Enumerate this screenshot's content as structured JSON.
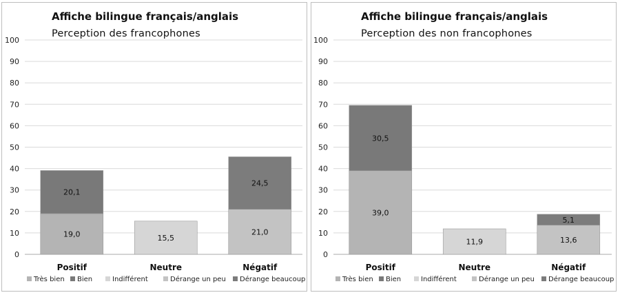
{
  "chart_data": [
    {
      "type": "bar",
      "stacked": true,
      "title": "Affiche bilingue français/anglais",
      "subtitle": "Perception des francophones",
      "categories": [
        "Positif",
        "Neutre",
        "Négatif"
      ],
      "ylim": [
        0,
        100
      ],
      "yticks": [
        0,
        10,
        20,
        30,
        40,
        50,
        60,
        70,
        80,
        90,
        100
      ],
      "grid": true,
      "legend_position": "bottom",
      "series": [
        {
          "name": "Très bien",
          "values": [
            19.0,
            null,
            null
          ],
          "labels": [
            "19,0",
            "",
            ""
          ],
          "color": "#b4b4b4"
        },
        {
          "name": "Bien",
          "values": [
            20.1,
            null,
            null
          ],
          "labels": [
            "20,1",
            "",
            ""
          ],
          "color": "#797979"
        },
        {
          "name": "Indifférent",
          "values": [
            null,
            15.5,
            null
          ],
          "labels": [
            "",
            "15,5",
            ""
          ],
          "color": "#d6d6d6"
        },
        {
          "name": "Dérange un peu",
          "values": [
            null,
            null,
            21.0
          ],
          "labels": [
            "",
            "",
            "21,0"
          ],
          "color": "#c3c3c3"
        },
        {
          "name": "Dérange beaucoup",
          "values": [
            null,
            null,
            24.5
          ],
          "labels": [
            "",
            "",
            "24,5"
          ],
          "color": "#7c7c7c"
        }
      ]
    },
    {
      "type": "bar",
      "stacked": true,
      "title": "Affiche bilingue français/anglais",
      "subtitle": "Perception des non francophones",
      "categories": [
        "Positif",
        "Neutre",
        "Négatif"
      ],
      "ylim": [
        0,
        100
      ],
      "yticks": [
        0,
        10,
        20,
        30,
        40,
        50,
        60,
        70,
        80,
        90,
        100
      ],
      "grid": true,
      "legend_position": "bottom",
      "series": [
        {
          "name": "Très bien",
          "values": [
            39.0,
            null,
            null
          ],
          "labels": [
            "39,0",
            "",
            ""
          ],
          "color": "#b4b4b4"
        },
        {
          "name": "Bien",
          "values": [
            30.5,
            null,
            null
          ],
          "labels": [
            "30,5",
            "",
            ""
          ],
          "color": "#797979"
        },
        {
          "name": "Indifférent",
          "values": [
            null,
            11.9,
            null
          ],
          "labels": [
            "",
            "11,9",
            ""
          ],
          "color": "#d6d6d6"
        },
        {
          "name": "Dérange un peu",
          "values": [
            null,
            null,
            13.6
          ],
          "labels": [
            "",
            "",
            "13,6"
          ],
          "color": "#c3c3c3"
        },
        {
          "name": "Dérange beaucoup",
          "values": [
            null,
            null,
            5.1
          ],
          "labels": [
            "",
            "",
            "5,1"
          ],
          "color": "#7c7c7c"
        }
      ]
    }
  ]
}
